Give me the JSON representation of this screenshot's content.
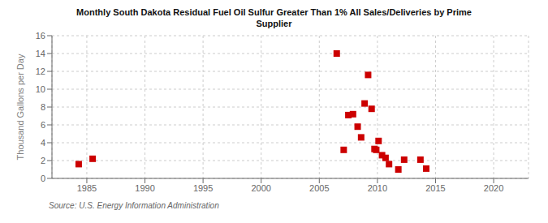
{
  "chart_data": {
    "type": "scatter",
    "title": "Monthly South Dakota Residual Fuel Oil Sulfur Greater Than 1% All Sales/Deliveries by Prime\nSupplier",
    "ylabel": "Thousand Gallons per Day",
    "source": "Source: U.S. Energy Information Administration",
    "x": [
      1984.3,
      1985.5,
      2006.5,
      2007.1,
      2007.5,
      2007.9,
      2008.3,
      2008.6,
      2008.9,
      2009.2,
      2009.5,
      2009.75,
      2009.9,
      2010.1,
      2010.4,
      2010.7,
      2011.0,
      2011.8,
      2012.3,
      2013.7,
      2014.2
    ],
    "values": [
      1.6,
      2.2,
      14.0,
      3.2,
      7.1,
      7.2,
      5.8,
      4.6,
      8.4,
      11.6,
      7.8,
      3.3,
      3.2,
      4.2,
      2.6,
      2.3,
      1.6,
      1.0,
      2.1,
      2.1,
      1.1
    ],
    "color": "#cc0000",
    "marker": "square",
    "xlim": [
      1982,
      2023
    ],
    "ylim": [
      0,
      16
    ],
    "xticks": [
      1985,
      1990,
      1995,
      2000,
      2005,
      2010,
      2015,
      2020
    ],
    "yticks": [
      0,
      2,
      4,
      6,
      8,
      10,
      12,
      14,
      16
    ],
    "grid": true
  }
}
